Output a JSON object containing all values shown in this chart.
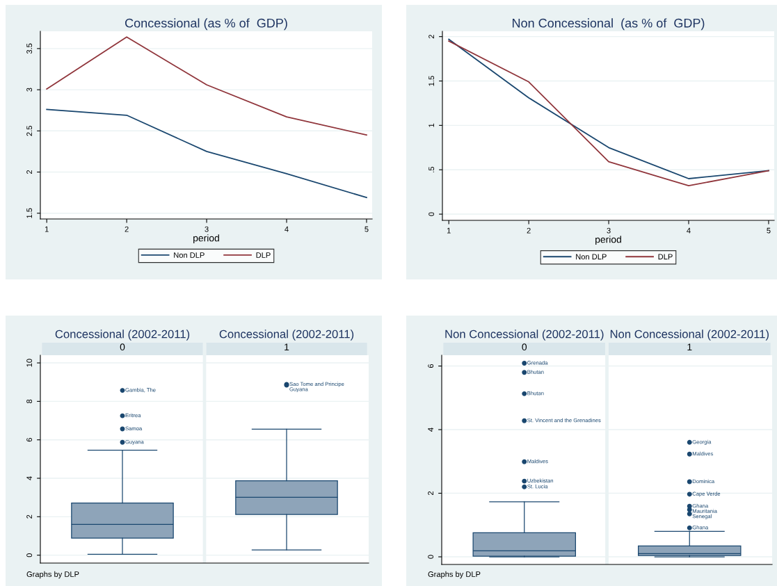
{
  "chart_data": [
    {
      "type": "line",
      "title": "Concessional (as % of  GDP)",
      "xlabel": "period",
      "x": [
        1,
        2,
        3,
        4,
        5
      ],
      "xlim": [
        0.92,
        5.07
      ],
      "xticks": [
        1,
        2,
        3,
        4,
        5
      ],
      "ylim": [
        1.43,
        3.71
      ],
      "yticks": [
        1.5,
        2,
        2.5,
        3,
        3.5
      ],
      "grid": "y",
      "legend": "bottom",
      "series": [
        {
          "name": "Non DLP",
          "color": "#1a476f",
          "values": [
            2.76,
            2.69,
            2.25,
            1.98,
            1.69
          ]
        },
        {
          "name": "DLP",
          "color": "#90353b",
          "values": [
            3.01,
            3.64,
            3.06,
            2.67,
            2.45
          ]
        }
      ]
    },
    {
      "type": "line",
      "title": "Non Concessional  (as % of  GDP)",
      "xlabel": "period",
      "x": [
        1,
        2,
        3,
        4,
        5
      ],
      "xlim": [
        0.92,
        5.07
      ],
      "xticks": [
        1,
        2,
        3,
        4,
        5
      ],
      "ylim": [
        -0.07,
        2.06
      ],
      "yticks": [
        0,
        {
          "value": 0.5,
          "label": ".5"
        },
        1,
        1.5,
        2
      ],
      "grid": "y",
      "legend": "bottom",
      "series": [
        {
          "name": "Non DLP",
          "color": "#1a476f",
          "values": [
            1.97,
            1.31,
            0.75,
            0.4,
            0.49
          ]
        },
        {
          "name": "DLP",
          "color": "#90353b",
          "values": [
            1.95,
            1.49,
            0.59,
            0.32,
            0.49
          ]
        }
      ]
    },
    {
      "type": "box",
      "title": "Concessional (2002-2011)",
      "categories": [
        "0",
        "1"
      ],
      "ylim": [
        -0.41,
        10.4
      ],
      "yticks": [
        0,
        2,
        4,
        6,
        8,
        10
      ],
      "grid": "y",
      "series": [
        {
          "color": "#8ea4b9",
          "boxes": [
            {
              "low": 0.05,
              "q1": 0.89,
              "median": 1.6,
              "q3": 2.71,
              "high": 5.46,
              "outliers": [
                8.57,
                7.25,
                6.57,
                5.87
              ]
            },
            {
              "low": 0.27,
              "q1": 2.12,
              "median": 3.01,
              "q3": 3.87,
              "high": 6.55,
              "outliers": [
                8.88,
                8.84
              ]
            }
          ]
        }
      ],
      "annotations": [
        "Gambia, The",
        "Eritrea",
        "Samoa",
        "Guyana",
        "Sao Tome and Principe",
        "Guyana",
        "Graphs by DLP"
      ]
    },
    {
      "type": "box",
      "title": "Non Concessional (2002-2011)",
      "categories": [
        "0",
        "1"
      ],
      "ylim": [
        -0.24,
        6.34
      ],
      "yticks": [
        0,
        2,
        4,
        6
      ],
      "grid": "y",
      "series": [
        {
          "color": "#8ea4b9",
          "boxes": [
            {
              "low": 0.0,
              "q1": 0.02,
              "median": 0.19,
              "q3": 0.76,
              "high": 1.73,
              "outliers": [
                6.09,
                5.8,
                5.13,
                4.28,
                2.99,
                2.38,
                2.2
              ]
            },
            {
              "low": 0.0,
              "q1": 0.04,
              "median": 0.1,
              "q3": 0.34,
              "high": 0.8,
              "outliers": [
                3.6,
                3.23,
                2.36,
                1.97,
                1.59,
                1.48,
                1.35,
                0.91
              ]
            }
          ]
        }
      ],
      "annotations": [
        "Grenada",
        "Bhutan",
        "Bhutan",
        "St. Vincent and the Grenadines",
        "Maldives",
        "Uzbekistan",
        "St. Lucia",
        "Georgia",
        "Maldives",
        "Dominica",
        "Cape Verde",
        "Ghana",
        "Mauritania",
        "Senegal",
        "Ghana",
        "Graphs by DLP"
      ]
    }
  ]
}
